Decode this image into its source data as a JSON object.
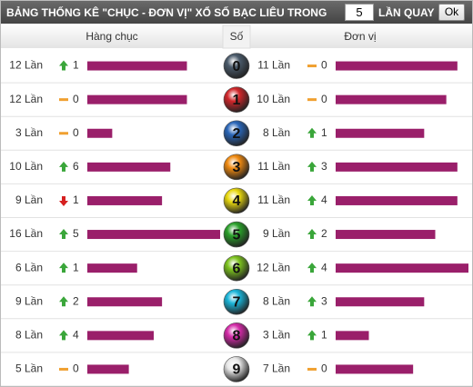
{
  "header": {
    "title": "BẢNG THỐNG KÊ \"CHỤC - ĐƠN VỊ\" XỔ SỐ BẠC LIÊU TRONG",
    "input_value": "5",
    "title_suffix": "LẦN QUAY",
    "button": "Ok"
  },
  "columns": {
    "tens": "Hàng chục",
    "digit": "Số",
    "units": "Đơn vị"
  },
  "rows": [
    {
      "digit": "0",
      "color": "#4a5a6a",
      "tens": {
        "count": {
          "value": 12,
          "label": "12 Lần"
        },
        "trend": "up",
        "delta": 1
      },
      "units": {
        "count": {
          "value": 11,
          "label": "11 Lần"
        },
        "trend": "flat",
        "delta": 0
      }
    },
    {
      "digit": "1",
      "color": "#d0262a",
      "tens": {
        "count": {
          "value": 12,
          "label": "12 Lần"
        },
        "trend": "flat",
        "delta": 0
      },
      "units": {
        "count": {
          "value": 10,
          "label": "10 Lần"
        },
        "trend": "flat",
        "delta": 0
      }
    },
    {
      "digit": "2",
      "color": "#2a66b8",
      "tens": {
        "count": {
          "value": 3,
          "label": "3 Lần"
        },
        "trend": "flat",
        "delta": 0
      },
      "units": {
        "count": {
          "value": 8,
          "label": "8 Lần"
        },
        "trend": "up",
        "delta": 1
      }
    },
    {
      "digit": "3",
      "color": "#f08a10",
      "tens": {
        "count": {
          "value": 10,
          "label": "10 Lần"
        },
        "trend": "up",
        "delta": 6
      },
      "units": {
        "count": {
          "value": 11,
          "label": "11 Lần"
        },
        "trend": "up",
        "delta": 3
      }
    },
    {
      "digit": "4",
      "color": "#e8d80e",
      "tens": {
        "count": {
          "value": 9,
          "label": "9 Lần"
        },
        "trend": "down",
        "delta": 1
      },
      "units": {
        "count": {
          "value": 11,
          "label": "11 Lần"
        },
        "trend": "up",
        "delta": 4
      }
    },
    {
      "digit": "5",
      "color": "#2aa02a",
      "tens": {
        "count": {
          "value": 16,
          "label": "16 Lần"
        },
        "trend": "up",
        "delta": 5
      },
      "units": {
        "count": {
          "value": 9,
          "label": "9 Lần"
        },
        "trend": "up",
        "delta": 2
      }
    },
    {
      "digit": "6",
      "color": "#7cc21e",
      "tens": {
        "count": {
          "value": 6,
          "label": "6 Lần"
        },
        "trend": "up",
        "delta": 1
      },
      "units": {
        "count": {
          "value": 12,
          "label": "12 Lần"
        },
        "trend": "up",
        "delta": 4
      }
    },
    {
      "digit": "7",
      "color": "#1ab4d8",
      "tens": {
        "count": {
          "value": 9,
          "label": "9 Lần"
        },
        "trend": "up",
        "delta": 2
      },
      "units": {
        "count": {
          "value": 8,
          "label": "8 Lần"
        },
        "trend": "up",
        "delta": 3
      }
    },
    {
      "digit": "8",
      "color": "#d42aa8",
      "tens": {
        "count": {
          "value": 8,
          "label": "8 Lần"
        },
        "trend": "up",
        "delta": 4
      },
      "units": {
        "count": {
          "value": 3,
          "label": "3 Lần"
        },
        "trend": "up",
        "delta": 1
      }
    },
    {
      "digit": "9",
      "color": "#e8e8e8",
      "tens": {
        "count": {
          "value": 5,
          "label": "5 Lần"
        },
        "trend": "flat",
        "delta": 0
      },
      "units": {
        "count": {
          "value": 7,
          "label": "7 Lần"
        },
        "trend": "flat",
        "delta": 0
      }
    }
  ]
}
